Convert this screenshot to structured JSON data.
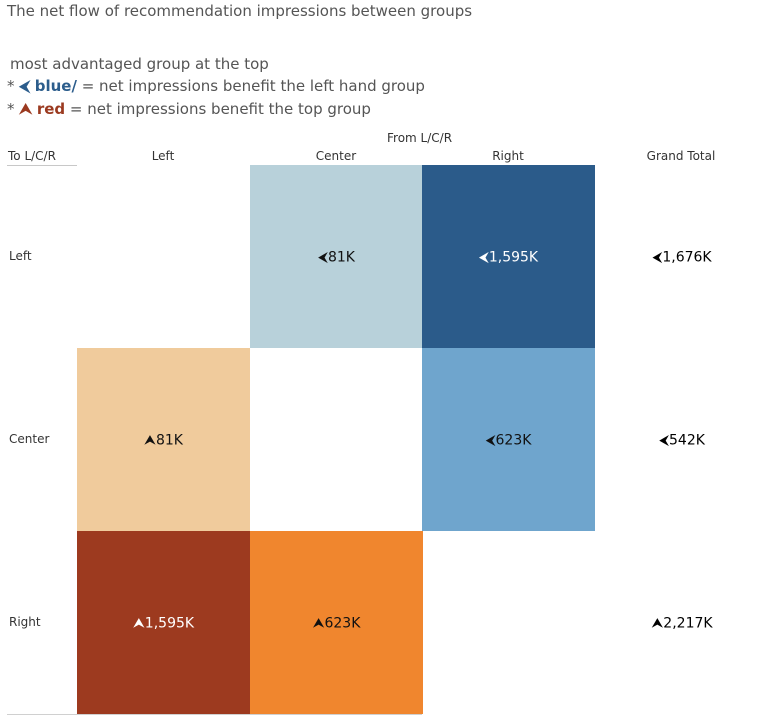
{
  "title": "The net flow of  recommendation impressions between groups",
  "legend": {
    "line1": "most advantaged group at the top",
    "blue_prefix": "* ",
    "blue_symbol": "⮜",
    "blue_word": "blue/",
    "blue_text": " =  net impressions benefit the left hand group",
    "red_prefix": "* ",
    "red_symbol": "⮝",
    "red_word": "red",
    "red_text": " = net impressions benefit the top group"
  },
  "colors": {
    "blue_dark": "#2b5b8a",
    "blue_mid": "#6fa5cd",
    "blue_light": "#b8d1da",
    "red_dark": "#9d3a1f",
    "orange": "#f0862e",
    "peach": "#f0cb9c"
  },
  "chart_data": {
    "type": "heatmap",
    "col_axis_title": "From L/C/R",
    "row_axis_title": "To L/C/R",
    "columns": [
      "Left",
      "Center",
      "Right"
    ],
    "grand_total_label": "Grand Total",
    "rows": [
      "Left",
      "Center",
      "Right"
    ],
    "cells": [
      [
        null,
        {
          "value": 81,
          "label": "81K",
          "direction": "left",
          "color": "#b8d1da"
        },
        {
          "value": 1595,
          "label": "1,595K",
          "direction": "left",
          "color": "#2b5b8a"
        }
      ],
      [
        {
          "value": 81,
          "label": "81K",
          "direction": "up",
          "color": "#f0cb9c"
        },
        null,
        {
          "value": 623,
          "label": "623K",
          "direction": "left",
          "color": "#6fa5cd"
        }
      ],
      [
        {
          "value": 1595,
          "label": "1,595K",
          "direction": "up",
          "color": "#9d3a1f"
        },
        {
          "value": 623,
          "label": "623K",
          "direction": "up",
          "color": "#f0862e"
        },
        null
      ]
    ],
    "grand_totals": [
      {
        "value": 1676,
        "label": "1,676K",
        "direction": "left"
      },
      {
        "value": 542,
        "label": "542K",
        "direction": "left"
      },
      {
        "value": 2217,
        "label": "2,217K",
        "direction": "up"
      }
    ],
    "units": "K"
  }
}
